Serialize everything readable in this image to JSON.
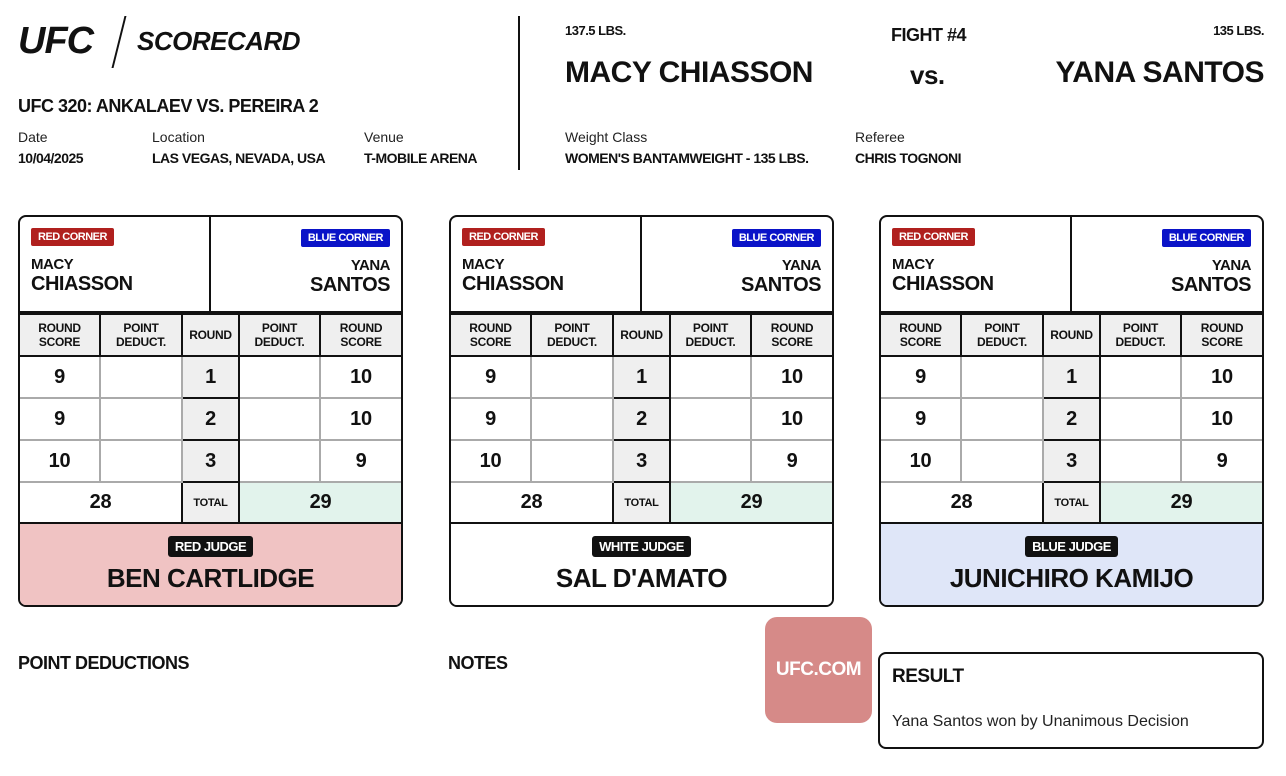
{
  "header": {
    "logo": "UFC",
    "title": "SCORECARD",
    "event": "UFC 320: ANKALAEV VS. PEREIRA 2",
    "date_label": "Date",
    "date": "10/04/2025",
    "location_label": "Location",
    "location": "LAS VEGAS, NEVADA, USA",
    "venue_label": "Venue",
    "venue": "T-MOBILE ARENA"
  },
  "fight": {
    "number": "FIGHT #4",
    "red_weight": "137.5 LBS.",
    "blue_weight": "135 LBS.",
    "red": "MACY CHIASSON",
    "vs": "vs.",
    "blue": "YANA SANTOS",
    "weight_class_label": "Weight Class",
    "weight_class": "WOMEN'S BANTAMWEIGHT - 135 LBS.",
    "referee_label": "Referee",
    "referee": "CHRIS TOGNONI"
  },
  "labels": {
    "red_corner": "RED CORNER",
    "blue_corner": "BLUE CORNER",
    "red_first": "MACY",
    "red_last": "CHIASSON",
    "blue_first": "YANA",
    "blue_last": "SANTOS",
    "round_score": "ROUND SCORE",
    "point_deduct": "POINT DEDUCT.",
    "round": "ROUND",
    "total": "TOTAL"
  },
  "colors": {
    "red_corner": "#b0201e",
    "blue_corner": "#0a13c8",
    "red_judge_bg": "#f0c3c3",
    "white_judge_bg": "#ffffff",
    "blue_judge_bg": "#dfe6f8",
    "winner_cell": "#e2f3ec"
  },
  "cards": [
    {
      "judge_role": "RED JUDGE",
      "judge": "BEN CARTLIDGE",
      "rounds": [
        {
          "r": "1",
          "red": "9",
          "blue": "10"
        },
        {
          "r": "2",
          "red": "9",
          "blue": "10"
        },
        {
          "r": "3",
          "red": "10",
          "blue": "9"
        }
      ],
      "red_total": "28",
      "blue_total": "29"
    },
    {
      "judge_role": "WHITE JUDGE",
      "judge": "SAL D'AMATO",
      "rounds": [
        {
          "r": "1",
          "red": "9",
          "blue": "10"
        },
        {
          "r": "2",
          "red": "9",
          "blue": "10"
        },
        {
          "r": "3",
          "red": "10",
          "blue": "9"
        }
      ],
      "red_total": "28",
      "blue_total": "29"
    },
    {
      "judge_role": "BLUE JUDGE",
      "judge": "JUNICHIRO KAMIJO",
      "rounds": [
        {
          "r": "1",
          "red": "9",
          "blue": "10"
        },
        {
          "r": "2",
          "red": "9",
          "blue": "10"
        },
        {
          "r": "3",
          "red": "10",
          "blue": "9"
        }
      ],
      "red_total": "28",
      "blue_total": "29"
    }
  ],
  "footer": {
    "point_deductions": "POINT DEDUCTIONS",
    "notes": "NOTES",
    "ufc_com": "UFC.COM",
    "result_label": "RESULT",
    "result": "Yana Santos won by Unanimous Decision"
  }
}
